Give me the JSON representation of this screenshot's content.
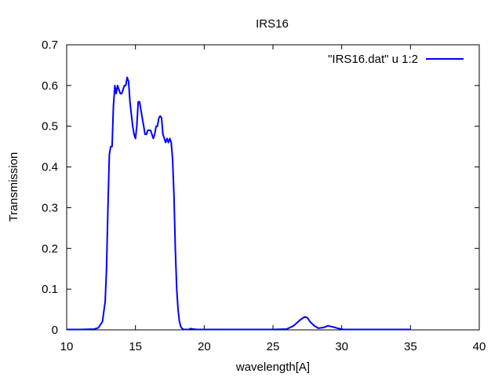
{
  "chart_data": {
    "type": "line",
    "title": "IRS16",
    "xlabel": "wavelength[A]",
    "ylabel": "Transmission",
    "xlim": [
      10,
      40
    ],
    "ylim": [
      0,
      0.7
    ],
    "xticks": [
      "10",
      "15",
      "20",
      "25",
      "30",
      "35",
      "40"
    ],
    "yticks": [
      "0",
      "0.1",
      "0.2",
      "0.3",
      "0.4",
      "0.5",
      "0.6",
      "0.7"
    ],
    "grid": false,
    "legend_position": "top-right",
    "series": [
      {
        "name": "\"IRS16.dat\" u 1:2",
        "color": "#0000ff",
        "x": [
          10,
          11,
          12,
          12.3,
          12.6,
          12.8,
          12.9,
          13.0,
          13.1,
          13.2,
          13.3,
          13.4,
          13.5,
          13.6,
          13.7,
          13.8,
          13.9,
          14.0,
          14.1,
          14.2,
          14.3,
          14.4,
          14.5,
          14.6,
          14.7,
          14.8,
          14.9,
          15.0,
          15.1,
          15.2,
          15.3,
          15.4,
          15.5,
          15.6,
          15.7,
          15.8,
          15.9,
          16.0,
          16.1,
          16.2,
          16.3,
          16.4,
          16.5,
          16.6,
          16.7,
          16.8,
          16.9,
          17.0,
          17.1,
          17.2,
          17.3,
          17.4,
          17.5,
          17.6,
          17.7,
          17.8,
          17.9,
          18.0,
          18.1,
          18.2,
          18.3,
          18.4,
          18.5,
          18.6,
          18.7,
          18.8,
          18.9,
          19.0,
          19.2,
          19.5,
          20.0,
          21.0,
          22.0,
          25.0,
          26.0,
          26.5,
          27.0,
          27.3,
          27.5,
          27.7,
          28.0,
          28.3,
          28.7,
          29.0,
          29.5,
          29.8,
          30.1,
          30.5,
          31.0,
          32.0,
          35.0
        ],
        "y": [
          0.001,
          0.001,
          0.002,
          0.005,
          0.02,
          0.07,
          0.15,
          0.3,
          0.43,
          0.45,
          0.45,
          0.55,
          0.6,
          0.58,
          0.6,
          0.59,
          0.58,
          0.58,
          0.59,
          0.6,
          0.6,
          0.62,
          0.61,
          0.56,
          0.53,
          0.5,
          0.48,
          0.47,
          0.5,
          0.56,
          0.56,
          0.54,
          0.52,
          0.5,
          0.48,
          0.48,
          0.49,
          0.49,
          0.49,
          0.48,
          0.47,
          0.48,
          0.5,
          0.5,
          0.52,
          0.525,
          0.52,
          0.48,
          0.47,
          0.46,
          0.47,
          0.46,
          0.47,
          0.46,
          0.42,
          0.33,
          0.2,
          0.1,
          0.05,
          0.02,
          0.008,
          0.003,
          0.001,
          0.001,
          0.001,
          0.001,
          0.001,
          0.003,
          0.002,
          0.001,
          0.001,
          0.001,
          0.001,
          0.001,
          0.002,
          0.01,
          0.025,
          0.032,
          0.03,
          0.02,
          0.01,
          0.004,
          0.006,
          0.01,
          0.006,
          0.003,
          0.001,
          0.001,
          0.001,
          0.001,
          0.001
        ]
      }
    ]
  }
}
